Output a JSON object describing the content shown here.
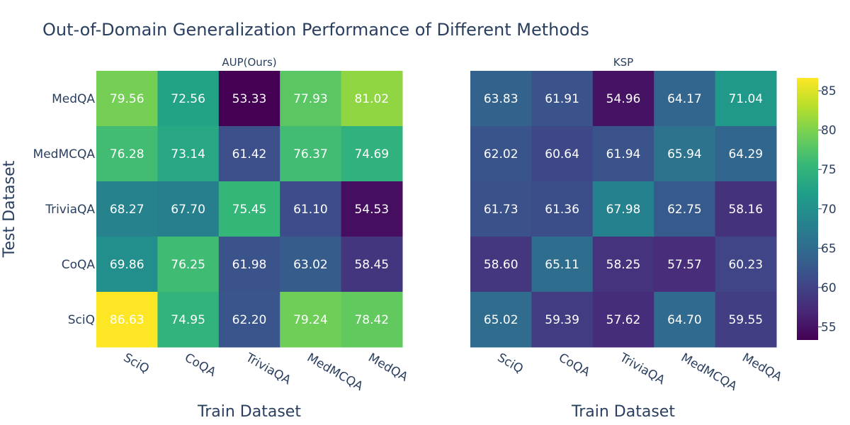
{
  "chart_data": {
    "type": "heatmap",
    "title": "Out-of-Domain Generalization Performance of Different Methods",
    "ylabel": "Test Dataset",
    "xlabel": "Train Dataset",
    "x_categories": [
      "SciQ",
      "CoQA",
      "TriviaQA",
      "MedMCQA",
      "MedQA"
    ],
    "y_categories": [
      "MedQA",
      "MedMCQA",
      "TriviaQA",
      "CoQA",
      "SciQ"
    ],
    "colorscale": "viridis",
    "zlim": [
      53.33,
      86.63
    ],
    "colorbar_ticks": [
      55,
      60,
      65,
      70,
      75,
      80,
      85
    ],
    "panels": [
      {
        "name": "AUP(Ours)",
        "values": [
          [
            79.56,
            72.56,
            53.33,
            77.93,
            81.02
          ],
          [
            76.28,
            73.14,
            61.42,
            76.37,
            74.69
          ],
          [
            68.27,
            67.7,
            75.45,
            61.1,
            54.53
          ],
          [
            69.86,
            76.25,
            61.98,
            63.02,
            58.45
          ],
          [
            86.63,
            74.95,
            62.2,
            79.24,
            78.42
          ]
        ]
      },
      {
        "name": "KSP",
        "values": [
          [
            63.83,
            61.91,
            54.96,
            64.17,
            71.04
          ],
          [
            62.02,
            60.64,
            61.94,
            65.94,
            64.29
          ],
          [
            61.73,
            61.36,
            67.98,
            62.75,
            58.16
          ],
          [
            58.6,
            65.11,
            58.25,
            57.57,
            60.23
          ],
          [
            65.02,
            59.39,
            57.62,
            64.7,
            59.55
          ]
        ]
      }
    ]
  }
}
